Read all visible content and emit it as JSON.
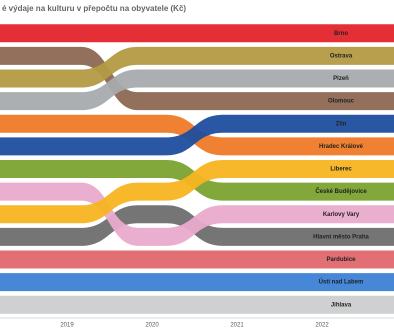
{
  "chart_data": {
    "type": "ribbon",
    "title": "é výdaje na kulturu v přepočtu na obyvatele (Kč)",
    "categories": [
      "2019",
      "2020",
      "2021",
      "2022"
    ],
    "ylim": [
      0.5,
      13.5
    ],
    "series": [
      {
        "name": "Brno",
        "color": "#e3242b",
        "values": [
          1,
          1,
          1,
          1
        ]
      },
      {
        "name": "Ostrava",
        "color": "#b39a45",
        "values": [
          3,
          2,
          2,
          2
        ]
      },
      {
        "name": "Plzeň",
        "color": "#a8abad",
        "values": [
          4,
          3,
          3,
          3
        ]
      },
      {
        "name": "Olomouc",
        "color": "#8c6852",
        "values": [
          2,
          4,
          4,
          4
        ]
      },
      {
        "name": "Zlín",
        "color": "#1f4e9e",
        "values": [
          6,
          6,
          5,
          5
        ]
      },
      {
        "name": "Hradec Králové",
        "color": "#ef7a27",
        "values": [
          5,
          5,
          6,
          6
        ]
      },
      {
        "name": "Liberec",
        "color": "#f7b520",
        "values": [
          9,
          8,
          7,
          7
        ]
      },
      {
        "name": "České Budějovice",
        "color": "#7ba22f",
        "values": [
          7,
          7,
          8,
          8
        ]
      },
      {
        "name": "Karlovy Vary",
        "color": "#e9aacb",
        "values": [
          8,
          10,
          9,
          9
        ]
      },
      {
        "name": "Hlavní město Praha",
        "color": "#6e6e6e",
        "values": [
          10,
          9,
          10,
          10
        ]
      },
      {
        "name": "Pardubice",
        "color": "#df676b",
        "values": [
          11,
          11,
          11,
          11
        ]
      },
      {
        "name": "Ústí nad Labem",
        "color": "#3c82d5",
        "values": [
          12,
          12,
          12,
          12
        ]
      },
      {
        "name": "Jihlava",
        "color": "#cbcdcf",
        "values": [
          13,
          13,
          13,
          13
        ]
      }
    ]
  }
}
